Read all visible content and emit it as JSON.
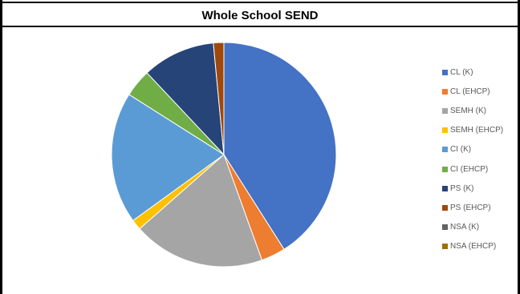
{
  "chart_data": {
    "type": "pie",
    "title": "Whole School SEND",
    "series": [
      {
        "name": "CL (K)",
        "value": 41,
        "color": "#4472C4"
      },
      {
        "name": "CL (EHCP)",
        "value": 3.5,
        "color": "#ED7D31"
      },
      {
        "name": "SEMH (K)",
        "value": 19,
        "color": "#A5A5A5"
      },
      {
        "name": "SEMH (EHCP)",
        "value": 1.5,
        "color": "#FFC000"
      },
      {
        "name": "CI (K)",
        "value": 19,
        "color": "#5B9BD5"
      },
      {
        "name": "CI (EHCP)",
        "value": 4,
        "color": "#70AD47"
      },
      {
        "name": "PS (K)",
        "value": 10.5,
        "color": "#264478"
      },
      {
        "name": "PS (EHCP)",
        "value": 1.5,
        "color": "#9E480E"
      },
      {
        "name": "NSA (K)",
        "value": 0,
        "color": "#636363"
      },
      {
        "name": "NSA (EHCP)",
        "value": 0,
        "color": "#997300"
      }
    ],
    "legend_position": "right"
  }
}
